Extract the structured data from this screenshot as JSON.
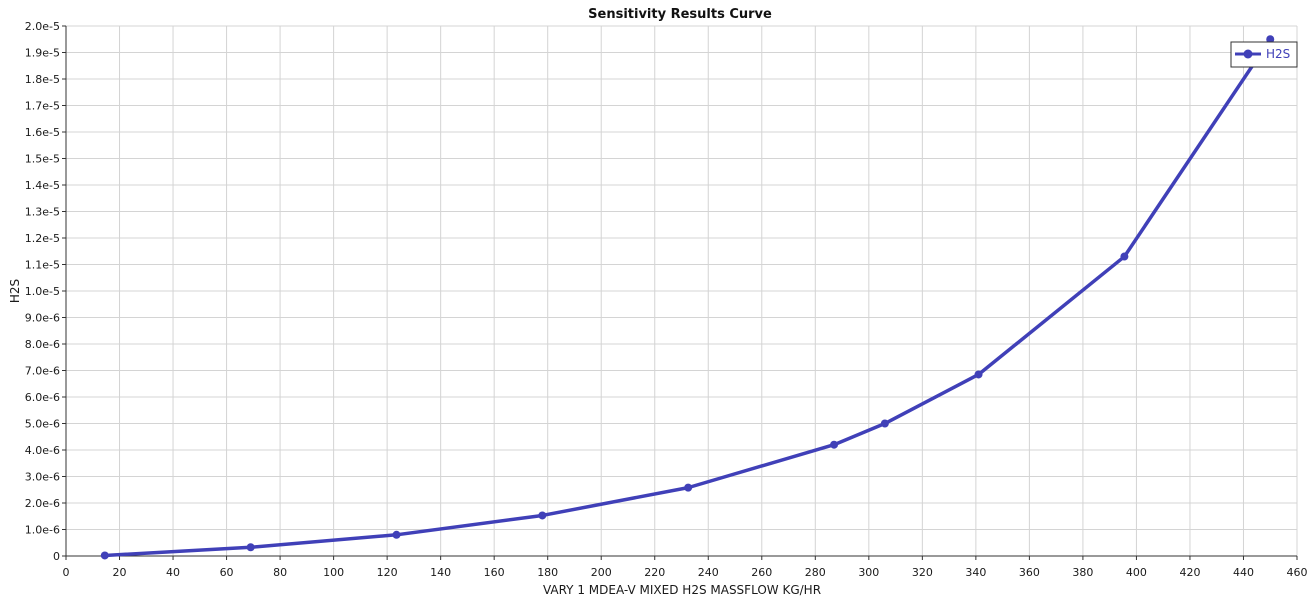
{
  "chart_data": {
    "type": "line",
    "title": "Sensitivity Results Curve",
    "xlabel": "VARY   1 MDEA-V MIXED H2S MASSFLOW KG/HR",
    "ylabel": "H2S",
    "xlim": [
      0,
      460
    ],
    "ylim": [
      0,
      2e-05
    ],
    "xticks": [
      "0",
      "20",
      "40",
      "60",
      "80",
      "100",
      "120",
      "140",
      "160",
      "180",
      "200",
      "220",
      "240",
      "260",
      "280",
      "300",
      "320",
      "340",
      "360",
      "380",
      "400",
      "420",
      "440",
      "460"
    ],
    "yticks": [
      "0",
      "1.0e-6",
      "2.0e-6",
      "3.0e-6",
      "4.0e-6",
      "5.0e-6",
      "6.0e-6",
      "7.0e-6",
      "8.0e-6",
      "9.0e-6",
      "1.0e-5",
      "1.1e-5",
      "1.2e-5",
      "1.3e-5",
      "1.4e-5",
      "1.5e-5",
      "1.6e-5",
      "1.7e-5",
      "1.8e-5",
      "1.9e-5",
      "2.0e-5"
    ],
    "grid": true,
    "legend_position": "top-right",
    "series": [
      {
        "name": "H2S",
        "color": "#4040b8",
        "x": [
          14.5,
          69,
          123.5,
          178,
          232.5,
          287,
          306,
          341,
          395.5,
          450
        ],
        "y": [
          2e-08,
          3.3e-07,
          8e-07,
          1.53e-06,
          2.58e-06,
          4.2e-06,
          5e-06,
          6.85e-06,
          1.13e-05,
          1.95e-05
        ]
      }
    ]
  }
}
